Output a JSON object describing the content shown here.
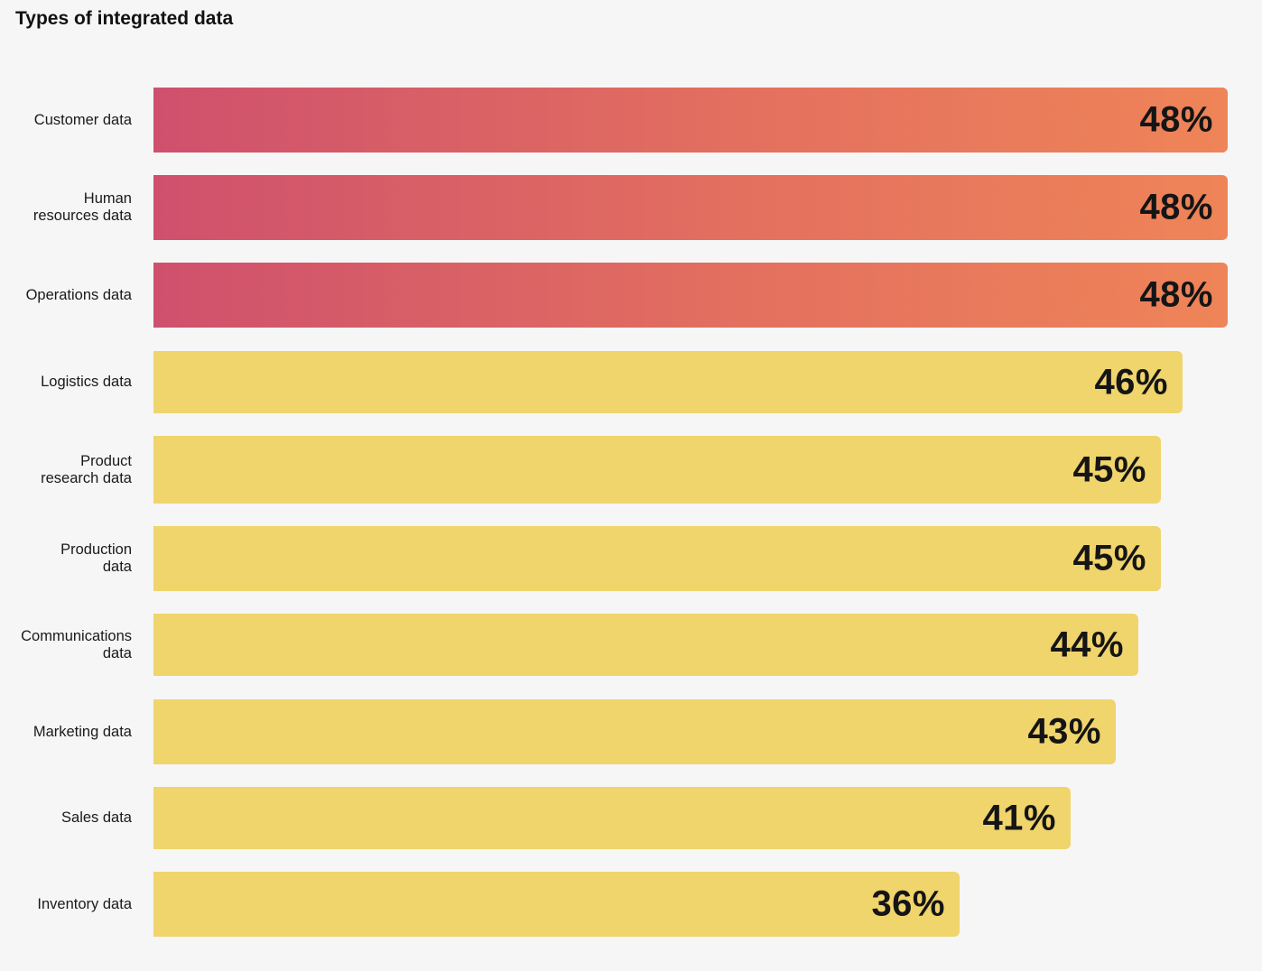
{
  "title": "Types of integrated data",
  "chart_data": {
    "type": "bar",
    "orientation": "horizontal",
    "title": "Types of integrated data",
    "categories": [
      "Customer data",
      "Human\nresources data",
      "Operations data",
      "Logistics data",
      "Product\nresearch data",
      "Production\ndata",
      "Communications\ndata",
      "Marketing data",
      "Sales data",
      "Inventory data"
    ],
    "values": [
      48,
      48,
      48,
      46,
      45,
      45,
      44,
      43,
      41,
      36
    ],
    "value_labels": [
      "48%",
      "48%",
      "48%",
      "46%",
      "45%",
      "45%",
      "44%",
      "43%",
      "41%",
      "36%"
    ],
    "highlighted": [
      true,
      true,
      true,
      false,
      false,
      false,
      false,
      false,
      false,
      false
    ],
    "xlim": [
      0,
      48
    ],
    "grid": false,
    "colors": {
      "highlight_start": "#cf506d",
      "highlight_end": "#ef8458",
      "default": "#f0d46c"
    }
  }
}
